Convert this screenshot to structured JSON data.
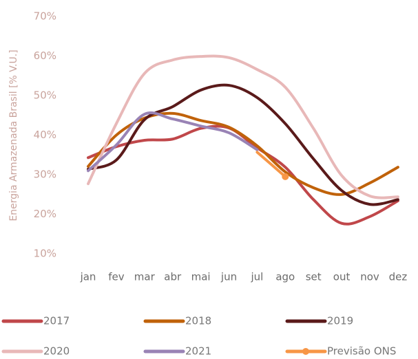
{
  "chart_data": {
    "type": "line",
    "y_label": "Energia Armazenada Brasil [% V.U.]",
    "categories": [
      "jan",
      "fev",
      "mar",
      "abr",
      "mai",
      "jun",
      "jul",
      "ago",
      "set",
      "out",
      "nov",
      "dez"
    ],
    "ylim": [
      10,
      70
    ],
    "yticks": [
      {
        "value": 10,
        "label": "10%"
      },
      {
        "value": 20,
        "label": "20%"
      },
      {
        "value": 30,
        "label": "30%"
      },
      {
        "value": 40,
        "label": "40%"
      },
      {
        "value": 50,
        "label": "50%"
      },
      {
        "value": 60,
        "label": "60%"
      },
      {
        "value": 70,
        "label": "70%"
      }
    ],
    "grid": false,
    "series": [
      {
        "name": "2017",
        "color": "#c0474a",
        "values": [
          34.3,
          37.1,
          38.7,
          39.0,
          41.7,
          41.8,
          36.8,
          31.9,
          23.7,
          17.7,
          19.4,
          23.4
        ]
      },
      {
        "name": "2018",
        "color": "#c0620a",
        "values": [
          32.1,
          40.0,
          44.3,
          45.5,
          43.7,
          42.0,
          37.3,
          30.7,
          26.7,
          25.0,
          27.9,
          31.9
        ]
      },
      {
        "name": "2019",
        "color": "#5a1a1a",
        "values": [
          31.4,
          33.7,
          43.9,
          47.2,
          51.4,
          52.6,
          49.5,
          42.9,
          34.0,
          26.0,
          22.5,
          23.7
        ]
      },
      {
        "name": "2020",
        "color": "#e8b8b8",
        "values": [
          27.7,
          42.9,
          55.6,
          59.0,
          59.9,
          59.6,
          56.6,
          52.1,
          41.7,
          29.8,
          24.6,
          24.4
        ]
      },
      {
        "name": "2021",
        "color": "#9983b5",
        "values": [
          31.0,
          37.5,
          45.3,
          44.1,
          42.3,
          40.6,
          36.3,
          null,
          null,
          null,
          null,
          null
        ]
      },
      {
        "name": "Previsão ONS",
        "color": "#f79646",
        "marker": true,
        "values": [
          null,
          null,
          null,
          null,
          null,
          null,
          35.7,
          29.5,
          null,
          null,
          null,
          null
        ]
      }
    ]
  }
}
